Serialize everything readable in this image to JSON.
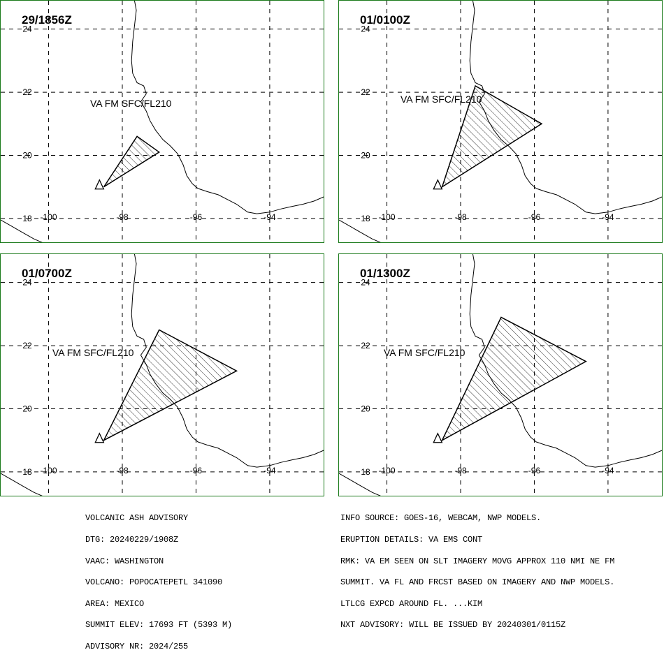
{
  "panels": [
    {
      "time": "29/1856Z",
      "label": "VA FM SFC/FL210",
      "polygon": [
        [
          -98.5,
          19.0
        ],
        [
          -97.6,
          20.6
        ],
        [
          -97.0,
          20.1
        ],
        [
          -98.5,
          19.0
        ]
      ]
    },
    {
      "time": "01/0100Z",
      "label": "VA FM SFC/FL210",
      "polygon": [
        [
          -98.5,
          19.0
        ],
        [
          -97.6,
          22.2
        ],
        [
          -95.8,
          21.0
        ],
        [
          -98.5,
          19.0
        ]
      ]
    },
    {
      "time": "01/0700Z",
      "label": "VA FM SFC/FL210",
      "polygon": [
        [
          -98.5,
          19.0
        ],
        [
          -97.0,
          22.5
        ],
        [
          -94.9,
          21.2
        ],
        [
          -98.5,
          19.0
        ]
      ]
    },
    {
      "time": "01/1300Z",
      "label": "VA FM SFC/FL210",
      "polygon": [
        [
          -98.5,
          19.0
        ],
        [
          -96.9,
          22.9
        ],
        [
          -94.6,
          21.5
        ],
        [
          -98.5,
          19.0
        ]
      ]
    }
  ],
  "map": {
    "lon_ticks": [
      "-100",
      "-98",
      "-96",
      "-94"
    ],
    "lat_ticks": [
      "18",
      "20",
      "22",
      "24"
    ],
    "lon_range": [
      -101.3,
      -92.5
    ],
    "lat_range": [
      17.2,
      24.9
    ],
    "volcano": {
      "lon": -98.62,
      "lat": 19.02
    }
  },
  "advisory_left": [
    "VOLCANIC ASH ADVISORY",
    "DTG: 20240229/1908Z",
    "VAAC: WASHINGTON",
    "VOLCANO: POPOCATEPETL 341090",
    "AREA: MEXICO",
    "SUMMIT ELEV: 17693 FT (5393 M)",
    "ADVISORY NR: 2024/255"
  ],
  "advisory_right": [
    "INFO SOURCE: GOES-16, WEBCAM, NWP MODELS.",
    "ERUPTION DETAILS: VA EMS CONT",
    "RMK: VA EM SEEN ON SLT IMAGERY MOVG APPROX 110 NMI NE FM",
    "SUMMIT. VA FL AND FRCST BASED ON IMAGERY AND NWP MODELS.",
    "LTLCG EXPCD AROUND FL. ...KIM",
    "NXT ADVISORY: WILL BE ISSUED BY 20240301/0115Z"
  ],
  "colors": {
    "border": "#1a7a1a",
    "grid": "#000000",
    "coast": "#000000"
  }
}
